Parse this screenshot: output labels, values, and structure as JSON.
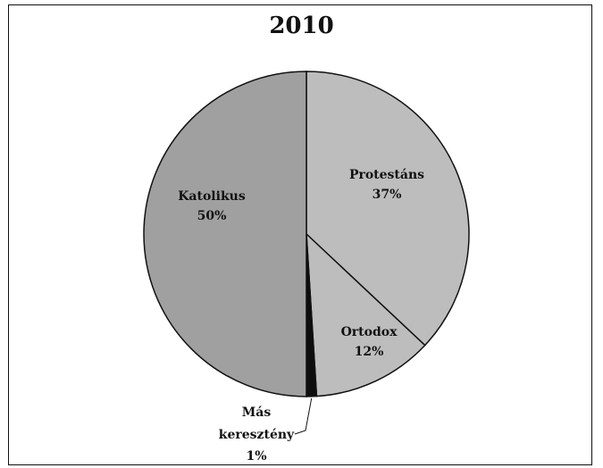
{
  "chart_data": {
    "type": "pie",
    "title": "2010",
    "slices": [
      {
        "label": "Protestáns",
        "value": 37,
        "pct_label": "37%",
        "color": "#bdbdbd"
      },
      {
        "label": "Ortodox",
        "value": 12,
        "pct_label": "12%",
        "color": "#bdbdbd"
      },
      {
        "label": "Más keresztény",
        "label_lines": [
          "Más",
          "keresztény"
        ],
        "value": 1,
        "pct_label": "1%",
        "color": "#0d0d0d"
      },
      {
        "label": "Katolikus",
        "value": 50,
        "pct_label": "50%",
        "color": "#a0a0a0"
      }
    ]
  }
}
